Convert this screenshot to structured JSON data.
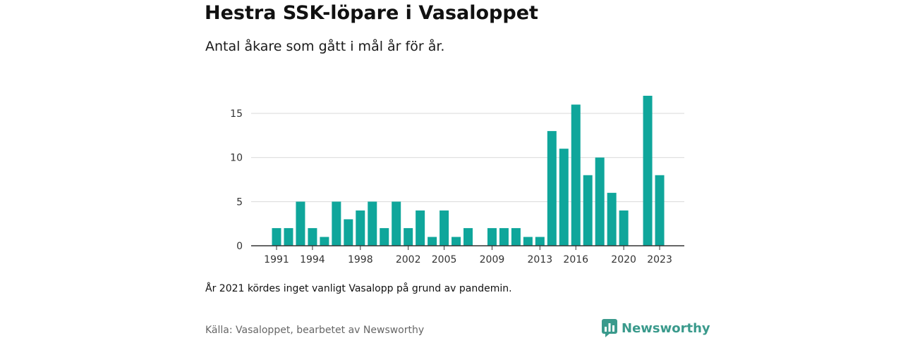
{
  "header": {
    "title": "Hestra SSK-löpare i Vasaloppet",
    "subtitle": "Antal åkare som gått i mål år för år."
  },
  "footer": {
    "note": "År 2021 kördes inget vanligt Vasalopp på grund av pandemin.",
    "source": "Källa: Vasaloppet, bearbetet av Newsworthy",
    "brand": "Newsworthy",
    "brand_icon": "newsworthy-logo-icon"
  },
  "colors": {
    "bar": "#0fa69b",
    "grid": "#d9d9d9",
    "axis": "#333333",
    "brand": "#3a9a8c"
  },
  "chart_data": {
    "type": "bar",
    "title": "Hestra SSK-löpare i Vasaloppet",
    "subtitle": "Antal åkare som gått i mål år för år.",
    "xlabel": "",
    "ylabel": "",
    "categories": [
      1991,
      1992,
      1993,
      1994,
      1995,
      1996,
      1997,
      1998,
      1999,
      2000,
      2001,
      2002,
      2003,
      2004,
      2005,
      2006,
      2007,
      2008,
      2009,
      2010,
      2011,
      2012,
      2013,
      2014,
      2015,
      2016,
      2017,
      2018,
      2019,
      2020,
      2021,
      2022,
      2023
    ],
    "values": [
      2,
      2,
      5,
      2,
      1,
      5,
      3,
      4,
      5,
      2,
      5,
      2,
      4,
      1,
      4,
      1,
      2,
      0,
      2,
      2,
      2,
      1,
      1,
      13,
      11,
      16,
      8,
      10,
      6,
      4,
      0,
      17,
      8
    ],
    "xticks": [
      1991,
      1994,
      1998,
      2002,
      2005,
      2009,
      2013,
      2016,
      2020,
      2023
    ],
    "yticks": [
      0,
      5,
      10,
      15
    ],
    "ylim": [
      0,
      17
    ],
    "grid": true,
    "legend": "none"
  }
}
